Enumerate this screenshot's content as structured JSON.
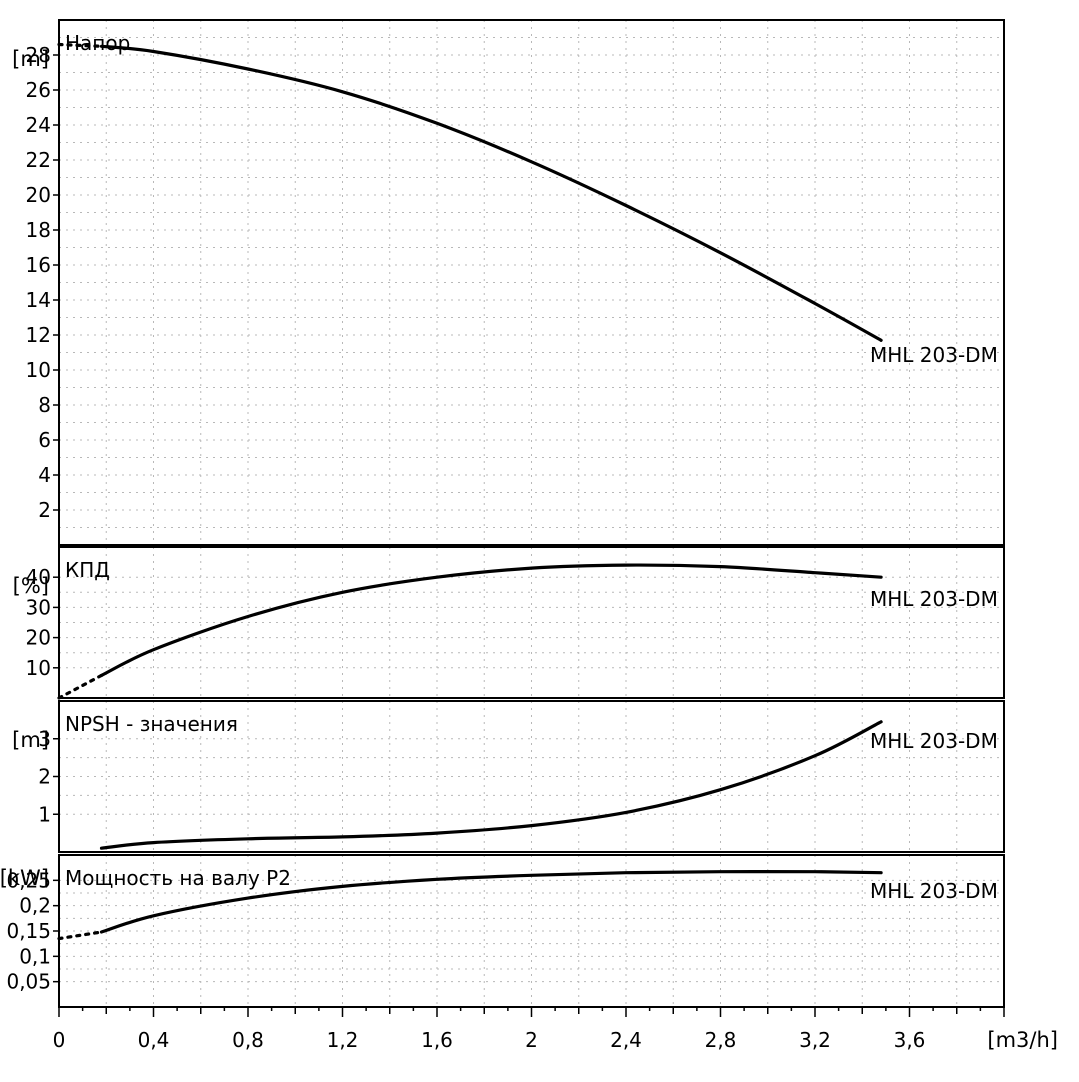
{
  "chart_data": {
    "type": "line",
    "x_axis": {
      "unit": "[m3/h]",
      "min": 0,
      "max": 4.0,
      "ticks": [
        0,
        0.4,
        0.8,
        1.2,
        1.6,
        2,
        2.4,
        2.8,
        3.2,
        3.6
      ],
      "tick_labels": [
        "0",
        "0,4",
        "0,8",
        "1,2",
        "1,6",
        "2",
        "2,4",
        "2,8",
        "3,2",
        "3,6"
      ]
    },
    "panels": [
      {
        "id": "head",
        "title": "Напор",
        "unit": "[m]",
        "ylim": [
          0,
          30
        ],
        "ticks": [
          2,
          4,
          6,
          8,
          10,
          12,
          14,
          16,
          18,
          20,
          22,
          24,
          26,
          28
        ],
        "tick_labels": [
          "2",
          "4",
          "6",
          "8",
          "10",
          "12",
          "14",
          "16",
          "18",
          "20",
          "22",
          "24",
          "26",
          "28"
        ],
        "series": [
          {
            "name": "MHL 203-DM",
            "dotted": {
              "x": [
                0,
                0.18
              ],
              "y": [
                28.6,
                28.5
              ]
            },
            "x": [
              0.18,
              0.4,
              0.8,
              1.2,
              1.6,
              2.0,
              2.4,
              2.8,
              3.2,
              3.48
            ],
            "y": [
              28.5,
              28.2,
              27.2,
              25.9,
              24.1,
              21.9,
              19.4,
              16.7,
              13.8,
              11.7
            ]
          }
        ]
      },
      {
        "id": "efficiency",
        "title": "КПД",
        "unit": "[%]",
        "ylim": [
          0,
          50
        ],
        "ticks": [
          10,
          20,
          30,
          40
        ],
        "tick_labels": [
          "10",
          "20",
          "30",
          "40"
        ],
        "series": [
          {
            "name": "MHL 203-DM",
            "dotted": {
              "x": [
                0,
                0.18
              ],
              "y": [
                0,
                7.5
              ]
            },
            "x": [
              0.18,
              0.4,
              0.8,
              1.2,
              1.6,
              2.0,
              2.4,
              2.8,
              3.2,
              3.48
            ],
            "y": [
              7.5,
              16,
              27,
              35,
              40,
              43,
              44,
              43.5,
              41.5,
              40
            ]
          }
        ]
      },
      {
        "id": "npsh",
        "title": "NPSH - значения",
        "unit": "[m]",
        "ylim": [
          0,
          4
        ],
        "ticks": [
          1,
          2,
          3
        ],
        "tick_labels": [
          "1",
          "2",
          "3"
        ],
        "series": [
          {
            "name": "MHL 203-DM",
            "x": [
              0.18,
              0.4,
              0.8,
              1.2,
              1.6,
              2.0,
              2.4,
              2.8,
              3.2,
              3.48
            ],
            "y": [
              0.1,
              0.25,
              0.35,
              0.4,
              0.5,
              0.7,
              1.05,
              1.65,
              2.55,
              3.45
            ]
          }
        ]
      },
      {
        "id": "power",
        "title": "Мощность на валу P2",
        "unit": "[kW]",
        "ylim": [
          0,
          0.3
        ],
        "ticks": [
          0.05,
          0.1,
          0.15,
          0.2,
          0.25
        ],
        "tick_labels": [
          "0,05",
          "0,1",
          "0,15",
          "0,2",
          "0,25"
        ],
        "series": [
          {
            "name": "MHL 203-DM",
            "dotted": {
              "x": [
                0,
                0.18
              ],
              "y": [
                0.135,
                0.148
              ]
            },
            "x": [
              0.18,
              0.4,
              0.8,
              1.2,
              1.6,
              2.0,
              2.4,
              2.8,
              3.2,
              3.48
            ],
            "y": [
              0.148,
              0.18,
              0.215,
              0.238,
              0.252,
              0.26,
              0.265,
              0.267,
              0.267,
              0.265
            ]
          }
        ]
      }
    ]
  }
}
